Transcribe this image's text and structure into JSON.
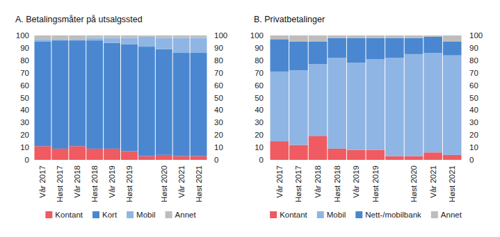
{
  "chart_data": [
    {
      "type": "bar",
      "stacked": true,
      "title": "A. Betalingsmåter på utsalgssted",
      "categories": [
        "Vår 2017",
        "Høst 2017",
        "Vår 2018",
        "Høst 2018",
        "Vår 2019",
        "Høst 2019",
        null,
        "Høst 2020",
        "Vår 2021",
        "Høst 2021"
      ],
      "series": [
        {
          "name": "Kontant",
          "color": "#ef5b60",
          "values": [
            11,
            9,
            11,
            9,
            9,
            7,
            3,
            4,
            3,
            3
          ]
        },
        {
          "name": "Kort",
          "color": "#4a87d0",
          "values": [
            84,
            87,
            85,
            87,
            85,
            86,
            88,
            85,
            83,
            83
          ]
        },
        {
          "name": "Mobil",
          "color": "#8fb5e4",
          "values": [
            2,
            1,
            1,
            2,
            4,
            5,
            8,
            9,
            12,
            12
          ]
        },
        {
          "name": "Annet",
          "color": "#bdbdbd",
          "values": [
            3,
            3,
            3,
            2,
            2,
            2,
            1,
            2,
            2,
            2
          ]
        }
      ],
      "ylim": [
        0,
        100
      ],
      "yticks": [
        0,
        10,
        20,
        30,
        40,
        50,
        60,
        70,
        80,
        90,
        100
      ],
      "grid": false,
      "legend": "bottom"
    },
    {
      "type": "bar",
      "stacked": true,
      "title": "B. Privatbetalinger",
      "categories": [
        "Vår 2017",
        "Høst 2017",
        "Vår 2018",
        "Høst 2018",
        "Vår 2019",
        "Høst 2019",
        null,
        "Høst 2020",
        "Vår 2021",
        "Høst 2021"
      ],
      "series": [
        {
          "name": "Kontant",
          "color": "#ef5b60",
          "values": [
            15,
            12,
            19,
            9,
            8,
            8,
            3,
            3,
            6,
            4
          ]
        },
        {
          "name": "Mobil",
          "color": "#8fb5e4",
          "values": [
            56,
            60,
            58,
            73,
            70,
            73,
            79,
            82,
            80,
            80
          ]
        },
        {
          "name": "Nett-/mobilbank",
          "color": "#4a87d0",
          "values": [
            26,
            23,
            18,
            16,
            20,
            17,
            16,
            13,
            13,
            11
          ]
        },
        {
          "name": "Annet",
          "color": "#bdbdbd",
          "values": [
            3,
            5,
            5,
            2,
            2,
            2,
            2,
            2,
            1,
            5
          ]
        }
      ],
      "ylim": [
        0,
        100
      ],
      "yticks": [
        0,
        10,
        20,
        30,
        40,
        50,
        60,
        70,
        80,
        90,
        100
      ],
      "grid": false,
      "legend": "bottom"
    }
  ]
}
